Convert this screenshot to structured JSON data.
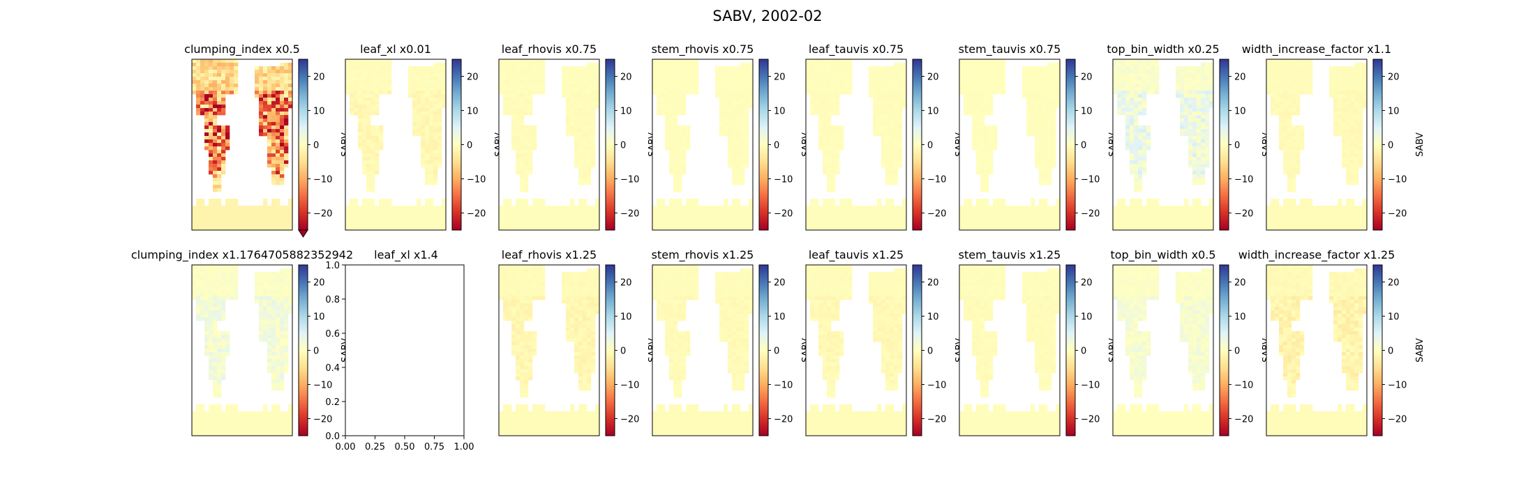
{
  "suptitle": "SABV, 2002-02",
  "colorbar": {
    "label": "SABV",
    "ticks": [
      "20",
      "10",
      "0",
      "−10",
      "−20"
    ],
    "tick_values": [
      20,
      10,
      0,
      -10,
      -20
    ],
    "vmin": -25,
    "vmax": 25,
    "colormap": "RdYlBu",
    "stops": [
      "#a50026",
      "#d73027",
      "#f46d43",
      "#fdae61",
      "#fee090",
      "#ffffbf",
      "#e0f3f8",
      "#abd9e9",
      "#74add1",
      "#4575b4",
      "#313695"
    ]
  },
  "empty_axes": {
    "x_ticks": [
      "0.00",
      "0.25",
      "0.50",
      "0.75",
      "1.00"
    ],
    "y_ticks": [
      "0.0",
      "0.2",
      "0.4",
      "0.6",
      "0.8",
      "1.0"
    ],
    "xlim": [
      0,
      1
    ],
    "ylim": [
      0,
      1
    ]
  },
  "chart_data": [
    {
      "type": "heatmap",
      "title": "clumping_index x0.5",
      "anomaly": -25,
      "land_value": -3,
      "extend_min": true
    },
    {
      "type": "heatmap",
      "title": "leaf_xl x0.01",
      "anomaly": -2,
      "land_value": -0.5
    },
    {
      "type": "heatmap",
      "title": "leaf_rhovis x0.75",
      "anomaly": -0.8,
      "land_value": -0.5
    },
    {
      "type": "heatmap",
      "title": "stem_rhovis x0.75",
      "anomaly": -0.3,
      "land_value": -0.5
    },
    {
      "type": "heatmap",
      "title": "leaf_tauvis x0.75",
      "anomaly": -0.5,
      "land_value": -0.5
    },
    {
      "type": "heatmap",
      "title": "stem_tauvis x0.75",
      "anomaly": -0.2,
      "land_value": -0.5
    },
    {
      "type": "heatmap",
      "title": "top_bin_width x0.25",
      "anomaly": 6,
      "land_value": -0.5
    },
    {
      "type": "heatmap",
      "title": "width_increase_factor x1.1",
      "anomaly": -1,
      "land_value": -1
    },
    {
      "type": "heatmap",
      "title": "clumping_index x1.1764705882352942",
      "anomaly": 4,
      "land_value": -0.5
    },
    {
      "type": "empty",
      "title": "leaf_xl x1.4"
    },
    {
      "type": "heatmap",
      "title": "leaf_rhovis x1.25",
      "anomaly": -2,
      "land_value": -1
    },
    {
      "type": "heatmap",
      "title": "stem_rhovis x1.25",
      "anomaly": -1,
      "land_value": -0.8
    },
    {
      "type": "heatmap",
      "title": "leaf_tauvis x1.25",
      "anomaly": -1.5,
      "land_value": -0.8
    },
    {
      "type": "heatmap",
      "title": "stem_tauvis x1.25",
      "anomaly": -0.8,
      "land_value": -0.6
    },
    {
      "type": "heatmap",
      "title": "top_bin_width x0.5",
      "anomaly": 3,
      "land_value": -0.3
    },
    {
      "type": "heatmap",
      "title": "width_increase_factor x1.25",
      "anomaly": -3,
      "land_value": -1
    }
  ]
}
